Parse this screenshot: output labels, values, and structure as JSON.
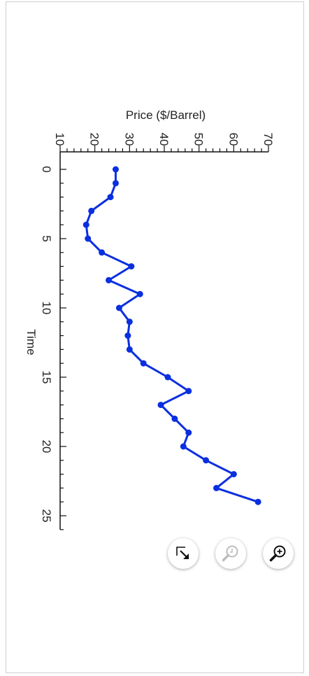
{
  "chart_data": {
    "type": "line",
    "title": "",
    "xlabel": "Time",
    "ylabel": "Price ($/Barrel)",
    "xlim": [
      0,
      26
    ],
    "ylim": [
      10,
      70
    ],
    "x_ticks": [
      0,
      5,
      10,
      15,
      20,
      25
    ],
    "y_ticks": [
      10,
      20,
      30,
      40,
      50,
      60,
      70
    ],
    "x": [
      1,
      2,
      3,
      4,
      5,
      6,
      7,
      8,
      9,
      10,
      11,
      12,
      13,
      14,
      15,
      16,
      17,
      18,
      19,
      20,
      21,
      22,
      23,
      24,
      25,
      26
    ],
    "series": [
      {
        "color": "#0a2fe0",
        "x": [
          0,
          1,
          2,
          3,
          4,
          5,
          6,
          7,
          8,
          9,
          10,
          11,
          12,
          13,
          14,
          15,
          16,
          17,
          18,
          19,
          20,
          21,
          22,
          23,
          24
        ],
        "values": [
          26,
          26,
          24.5,
          19,
          17.5,
          18,
          22,
          30.5,
          24,
          33,
          27,
          30,
          29.5,
          30,
          34,
          41,
          47,
          39,
          43,
          47,
          45.5,
          52,
          60,
          55,
          67
        ]
      }
    ],
    "grid": false
  },
  "toolbar": {
    "buttons": [
      {
        "name": "expand-button",
        "icon": "expand-arrow-icon"
      },
      {
        "name": "zoom-reset-button",
        "icon": "zoom-reset-icon"
      },
      {
        "name": "zoom-in-button",
        "icon": "zoom-in-icon"
      }
    ]
  }
}
